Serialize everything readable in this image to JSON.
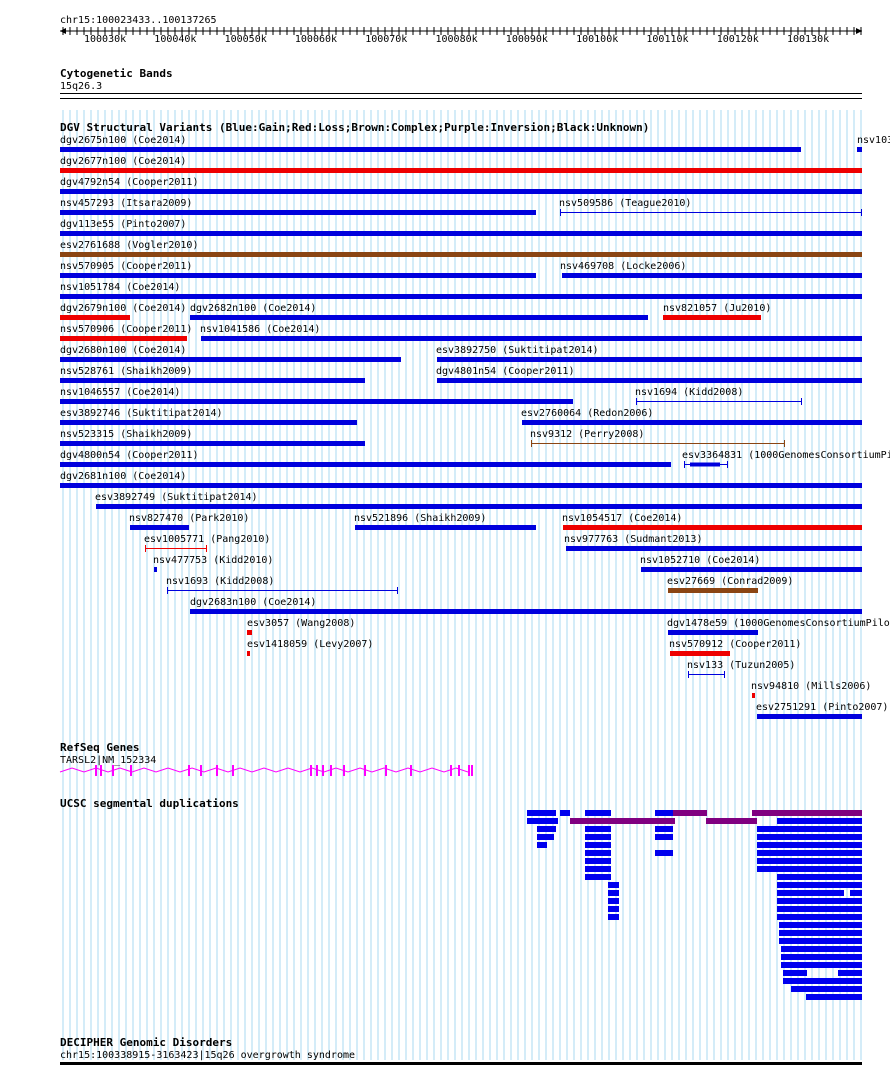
{
  "ruler": {
    "position": "chr15:100023433..100137265",
    "ticks": [
      "100030k",
      "100040k",
      "100050k",
      "100060k",
      "100070k",
      "100080k",
      "100090k",
      "100100k",
      "100110k",
      "100120k",
      "100130k"
    ]
  },
  "tracks": {
    "cytobands": {
      "title": "Cytogenetic Bands",
      "band": "15q26.3"
    },
    "dgv": {
      "title": "DGV Structural Variants (Blue:Gain;Red:Loss;Brown:Complex;Purple:Inversion;Black:Unknown)"
    },
    "refseq": {
      "title": "RefSeq Genes",
      "gene": "TARSL2|NM_152334"
    },
    "segdups": {
      "title": "UCSC segmental duplications"
    },
    "decipher": {
      "title": "DECIPHER Genomic Disorders",
      "item": "chr15:100338915-3163423|15q26 overgrowth syndrome"
    }
  },
  "colors": {
    "gain": "#0000dd",
    "loss": "#ee0000",
    "complex": "#8b4513",
    "inversion": "#800080",
    "unknown": "#000000",
    "segdup_blue": "#0000ee",
    "segdup_purple": "#800080",
    "refseq": "#ff00ff",
    "gridline": "#a8d8f0"
  },
  "variants": [
    {
      "label": "dgv2675n100 (Coe2014)",
      "type": "gain"
    },
    {
      "label": "nsv103",
      "type": "gain"
    },
    {
      "label": "dgv2677n100 (Coe2014)",
      "type": "loss"
    },
    {
      "label": "dgv4792n54 (Cooper2011)",
      "type": "gain"
    },
    {
      "label": "nsv457293 (Itsara2009)",
      "type": "gain"
    },
    {
      "label": "nsv509586 (Teague2010)",
      "type": "gain"
    },
    {
      "label": "dgv113e55 (Pinto2007)",
      "type": "gain"
    },
    {
      "label": "esv2761688 (Vogler2010)",
      "type": "complex"
    },
    {
      "label": "nsv570905 (Cooper2011)",
      "type": "gain"
    },
    {
      "label": "nsv469708 (Locke2006)",
      "type": "gain"
    },
    {
      "label": "nsv1051784 (Coe2014)",
      "type": "gain"
    },
    {
      "label": "dgv2679n100 (Coe2014)",
      "type": "loss"
    },
    {
      "label": "dgv2682n100 (Coe2014)",
      "type": "gain"
    },
    {
      "label": "nsv821057 (Ju2010)",
      "type": "loss"
    },
    {
      "label": "nsv570906 (Cooper2011)",
      "type": "loss"
    },
    {
      "label": "nsv1041586 (Coe2014)",
      "type": "gain"
    },
    {
      "label": "dgv2680n100 (Coe2014)",
      "type": "gain"
    },
    {
      "label": "esv3892750 (Suktitipat2014)",
      "type": "gain"
    },
    {
      "label": "nsv528761 (Shaikh2009)",
      "type": "gain"
    },
    {
      "label": "dgv4801n54 (Cooper2011)",
      "type": "gain"
    },
    {
      "label": "nsv1046557 (Coe2014)",
      "type": "gain"
    },
    {
      "label": "nsv1694 (Kidd2008)",
      "type": "gain"
    },
    {
      "label": "esv3892746 (Suktitipat2014)",
      "type": "gain"
    },
    {
      "label": "esv2760064 (Redon2006)",
      "type": "gain"
    },
    {
      "label": "nsv523315 (Shaikh2009)",
      "type": "gain"
    },
    {
      "label": "nsv9312 (Perry2008)",
      "type": "complex"
    },
    {
      "label": "dgv4800n54 (Cooper2011)",
      "type": "gain"
    },
    {
      "label": "esv3364831 (1000GenomesConsortiumPi",
      "type": "gain"
    },
    {
      "label": "dgv2681n100 (Coe2014)",
      "type": "gain"
    },
    {
      "label": "esv3892749 (Suktitipat2014)",
      "type": "gain"
    },
    {
      "label": "nsv827470 (Park2010)",
      "type": "gain"
    },
    {
      "label": "nsv521896 (Shaikh2009)",
      "type": "gain"
    },
    {
      "label": "nsv1054517 (Coe2014)",
      "type": "loss"
    },
    {
      "label": "esv1005771 (Pang2010)",
      "type": "loss"
    },
    {
      "label": "nsv977763 (Sudmant2013)",
      "type": "gain"
    },
    {
      "label": "nsv477753 (Kidd2010)",
      "type": "gain"
    },
    {
      "label": "nsv1052710 (Coe2014)",
      "type": "gain"
    },
    {
      "label": "nsv1693 (Kidd2008)",
      "type": "gain"
    },
    {
      "label": "esv27669 (Conrad2009)",
      "type": "complex"
    },
    {
      "label": "dgv2683n100 (Coe2014)",
      "type": "gain"
    },
    {
      "label": "esv3057 (Wang2008)",
      "type": "loss"
    },
    {
      "label": "dgv1478e59 (1000GenomesConsortiumPilo",
      "type": "gain"
    },
    {
      "label": "esv1418059 (Levy2007)",
      "type": "loss"
    },
    {
      "label": "nsv570912 (Cooper2011)",
      "type": "loss"
    },
    {
      "label": "nsv133 (Tuzun2005)",
      "type": "gain"
    },
    {
      "label": "nsv94810 (Mills2006)",
      "type": "loss"
    },
    {
      "label": "esv2751291 (Pinto2007)",
      "type": "gain"
    }
  ]
}
